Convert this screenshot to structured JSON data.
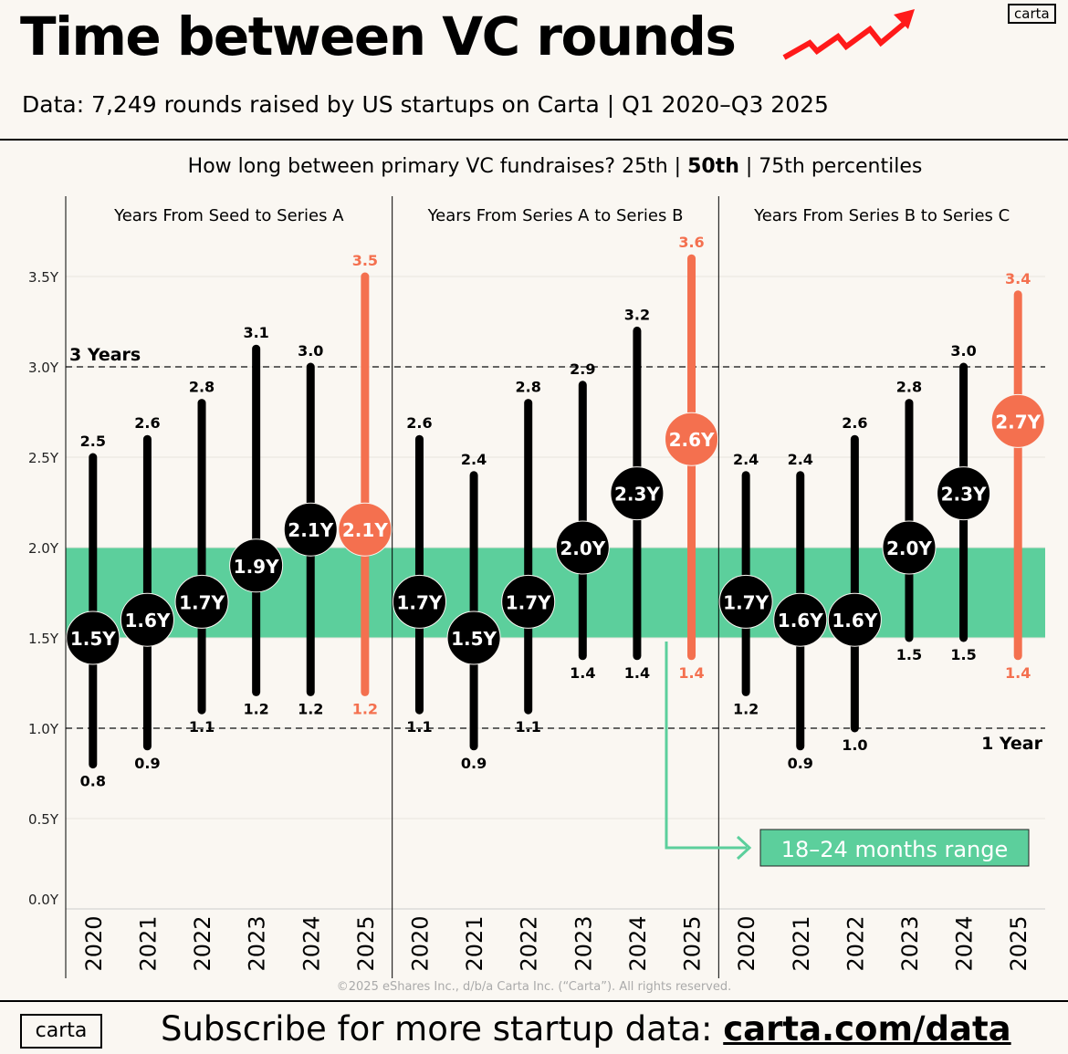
{
  "header": {
    "title": "Time between VC rounds",
    "subtitle": "Data: 7,249 rounds raised by US startups on Carta | Q1 2020–Q3 2025",
    "logo": "carta",
    "trend_icon": "red-zigzag-up-arrow"
  },
  "question": {
    "prefix": "How long between primary VC fundraises?  25th | ",
    "bold": "50th",
    "suffix": " | 75th percentiles"
  },
  "footer": {
    "logo": "carta",
    "subscribe_prefix": "Subscribe for more startup data: ",
    "subscribe_link": "carta.com/data",
    "copyright": "©2025 eShares Inc., d/b/a Carta Inc. (“Carta”). All rights reserved."
  },
  "colors": {
    "background": "#faf7f2",
    "bar": "#000000",
    "highlight": "#f4704f",
    "band": "#5ccf9c",
    "trend_arrow": "#ff1a1a"
  },
  "chart_data": {
    "type": "range-dot",
    "ylim": [
      0,
      3.5
    ],
    "y_ticks": [
      "0.0Y",
      "0.5Y",
      "1.0Y",
      "1.5Y",
      "2.0Y",
      "2.5Y",
      "3.0Y",
      "3.5Y"
    ],
    "y_tick_values": [
      0,
      0.5,
      1.0,
      1.5,
      2.0,
      2.5,
      3.0,
      3.5
    ],
    "reference_lines": [
      {
        "value": 3.0,
        "label": "3 Years",
        "style": "dashed"
      },
      {
        "value": 1.0,
        "label": "1 Year",
        "style": "dashed"
      }
    ],
    "band": {
      "from": 1.5,
      "to": 2.0,
      "label": "18–24 months range"
    },
    "categories": [
      "2020",
      "2021",
      "2022",
      "2023",
      "2024",
      "2025"
    ],
    "highlight_category": "2025",
    "panels": [
      {
        "title": "Years From Seed to Series A",
        "p25": [
          0.8,
          0.9,
          1.1,
          1.2,
          1.2,
          1.2
        ],
        "p50": [
          1.5,
          1.6,
          1.7,
          1.9,
          2.1,
          2.1
        ],
        "p75": [
          2.5,
          2.6,
          2.8,
          3.1,
          3.0,
          3.5
        ]
      },
      {
        "title": "Years From Series A to Series B",
        "p25": [
          1.1,
          0.9,
          1.1,
          1.4,
          1.4,
          1.4
        ],
        "p50": [
          1.7,
          1.5,
          1.7,
          2.0,
          2.3,
          2.6
        ],
        "p75": [
          2.6,
          2.4,
          2.8,
          2.9,
          3.2,
          3.6
        ]
      },
      {
        "title": "Years From Series B to Series C",
        "p25": [
          1.2,
          0.9,
          1.0,
          1.5,
          1.5,
          1.4
        ],
        "p50": [
          1.7,
          1.6,
          1.6,
          2.0,
          2.3,
          2.7
        ],
        "p75": [
          2.4,
          2.4,
          2.6,
          2.8,
          3.0,
          3.4
        ]
      }
    ]
  }
}
